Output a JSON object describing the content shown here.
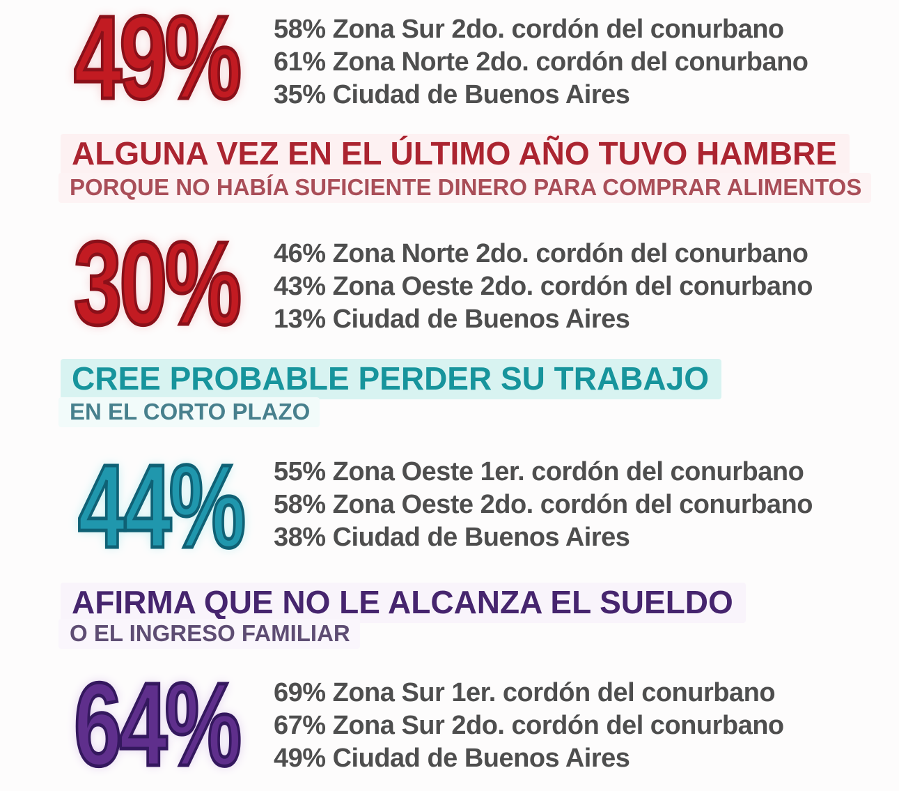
{
  "page": {
    "background": "#fdfcfc",
    "breakdown_text_color": "#4e4e4e"
  },
  "sections": [
    {
      "kind": "stat",
      "value": "49%",
      "fill": "#c21b22",
      "stroke": "#8a1019",
      "glow": "#f3c6c9",
      "items": [
        "58% Zona Sur 2do. cordón del conurbano",
        "61% Zona Norte 2do. cordón del conurbano",
        "35% Ciudad de Buenos Aires"
      ]
    },
    {
      "kind": "heading",
      "title": "ALGUNA VEZ EN EL ÚLTIMO AÑO TUVO HAMBRE",
      "subtitle": "PORQUE NO HABÍA SUFICIENTE DINERO PARA COMPRAR ALIMENTOS",
      "title_color": "#ab2430",
      "subtitle_color": "#a94e58",
      "title_band": "#fdf1f2",
      "subtitle_band": "#fdf3f4"
    },
    {
      "kind": "stat",
      "value": "30%",
      "fill": "#c21b22",
      "stroke": "#8a1019",
      "glow": "#f3c6c9",
      "items": [
        "46% Zona Norte 2do. cordón del conurbano",
        "43% Zona Oeste 2do. cordón del conurbano",
        "13% Ciudad de Buenos Aires"
      ]
    },
    {
      "kind": "heading",
      "title": "CREE PROBABLE PERDER SU TRABAJO",
      "subtitle": "EN EL CORTO PLAZO",
      "title_color": "#17949c",
      "subtitle_color": "#47808d",
      "title_band": "#d8f3f1",
      "subtitle_band": "#f2fbfa"
    },
    {
      "kind": "stat",
      "value": "44%",
      "fill": "#2097ad",
      "stroke": "#0f6175",
      "glow": "#bdeef0",
      "items": [
        "55% Zona Oeste 1er. cordón del conurbano",
        "58% Zona Oeste 2do. cordón del conurbano",
        "38% Ciudad de Buenos Aires"
      ]
    },
    {
      "kind": "heading",
      "title": "AFIRMA QUE NO LE ALCANZA EL SUELDO",
      "subtitle": "O EL INGRESO FAMILIAR",
      "title_color": "#46256e",
      "subtitle_color": "#5e4d73",
      "title_band": "#f9f4fb",
      "subtitle_band": "#faf6fc"
    },
    {
      "kind": "stat",
      "value": "64%",
      "fill": "#5f2f8c",
      "stroke": "#34185e",
      "glow": "#ddc9ec",
      "items": [
        "69% Zona Sur 1er. cordón del conurbano",
        "67% Zona Sur 2do. cordón del conurbano",
        "49% Ciudad de Buenos Aires"
      ]
    }
  ],
  "chart_data": {
    "type": "table",
    "title": "",
    "unit": "%",
    "indicators": [
      {
        "headline": null,
        "headline_detail": null,
        "overall_pct": 49,
        "breakdown": [
          {
            "zone": "Zona Sur 2do. cordón del conurbano",
            "pct": 58
          },
          {
            "zone": "Zona Norte 2do. cordón del conurbano",
            "pct": 61
          },
          {
            "zone": "Ciudad de Buenos Aires",
            "pct": 35
          }
        ]
      },
      {
        "headline": "ALGUNA VEZ EN EL ÚLTIMO AÑO TUVO HAMBRE",
        "headline_detail": "PORQUE NO HABÍA SUFICIENTE DINERO PARA COMPRAR ALIMENTOS",
        "overall_pct": 30,
        "breakdown": [
          {
            "zone": "Zona Norte 2do. cordón del conurbano",
            "pct": 46
          },
          {
            "zone": "Zona Oeste 2do. cordón del conurbano",
            "pct": 43
          },
          {
            "zone": "Ciudad de Buenos Aires",
            "pct": 13
          }
        ]
      },
      {
        "headline": "CREE PROBABLE PERDER SU TRABAJO",
        "headline_detail": "EN EL CORTO PLAZO",
        "overall_pct": 44,
        "breakdown": [
          {
            "zone": "Zona Oeste 1er. cordón del conurbano",
            "pct": 55
          },
          {
            "zone": "Zona Oeste 2do. cordón del conurbano",
            "pct": 58
          },
          {
            "zone": "Ciudad de Buenos Aires",
            "pct": 38
          }
        ]
      },
      {
        "headline": "AFIRMA QUE NO LE ALCANZA EL SUELDO",
        "headline_detail": "O EL INGRESO FAMILIAR",
        "overall_pct": 64,
        "breakdown": [
          {
            "zone": "Zona Sur 1er. cordón del conurbano",
            "pct": 69
          },
          {
            "zone": "Zona Sur 2do. cordón del conurbano",
            "pct": 67
          },
          {
            "zone": "Ciudad de Buenos Aires",
            "pct": 49
          }
        ]
      }
    ]
  }
}
